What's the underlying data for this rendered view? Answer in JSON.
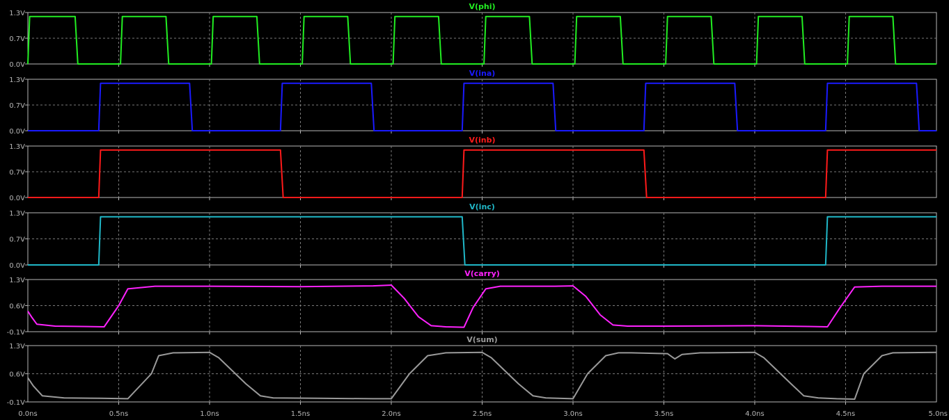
{
  "chart_data": {
    "type": "line",
    "xlabel": "",
    "xlim": [
      0,
      5
    ],
    "x_ticks": [
      "0.0ns",
      "0.5ns",
      "1.0ns",
      "1.5ns",
      "2.0ns",
      "2.5ns",
      "3.0ns",
      "3.5ns",
      "4.0ns",
      "4.5ns",
      "5.0ns"
    ],
    "grid": true,
    "background": "#000000",
    "grid_color": "#7a7a7a",
    "axis_color": "#b8b8b8",
    "panes": [
      {
        "title": "V(phi)",
        "color": "#22ee22",
        "ylim": [
          0,
          1.3
        ],
        "y_ticks": [
          "1.3V",
          "0.7V",
          "0.0V"
        ],
        "x_unit": "ns",
        "x": [
          0.0,
          0.01,
          0.26,
          0.275,
          0.51,
          0.52,
          0.76,
          0.775,
          1.01,
          1.02,
          1.26,
          1.275,
          1.51,
          1.52,
          1.76,
          1.775,
          2.01,
          2.02,
          2.26,
          2.275,
          2.51,
          2.52,
          2.76,
          2.775,
          3.01,
          3.02,
          3.26,
          3.275,
          3.51,
          3.52,
          3.76,
          3.775,
          4.01,
          4.02,
          4.26,
          4.275,
          4.51,
          4.52,
          4.76,
          4.775,
          5.0
        ],
        "y": [
          0.0,
          1.2,
          1.2,
          0.0,
          0.0,
          1.2,
          1.2,
          0.0,
          0.0,
          1.2,
          1.2,
          0.0,
          0.0,
          1.2,
          1.2,
          0.0,
          0.0,
          1.2,
          1.2,
          0.0,
          0.0,
          1.2,
          1.2,
          0.0,
          0.0,
          1.2,
          1.2,
          0.0,
          0.0,
          1.2,
          1.2,
          0.0,
          0.0,
          1.2,
          1.2,
          0.0,
          0.0,
          1.2,
          1.2,
          0.0,
          0.0
        ]
      },
      {
        "title": "V(ina)",
        "color": "#1a1aff",
        "ylim": [
          0,
          1.3
        ],
        "y_ticks": [
          "1.3V",
          "0.7V",
          "0.0V"
        ],
        "x": [
          0.0,
          0.39,
          0.4,
          0.89,
          0.905,
          1.39,
          1.4,
          1.89,
          1.905,
          2.39,
          2.4,
          2.89,
          2.905,
          3.39,
          3.4,
          3.89,
          3.905,
          4.39,
          4.4,
          4.89,
          4.905,
          5.0
        ],
        "y": [
          0.0,
          0.0,
          1.2,
          1.2,
          0.0,
          0.0,
          1.2,
          1.2,
          0.0,
          0.0,
          1.2,
          1.2,
          0.0,
          0.0,
          1.2,
          1.2,
          0.0,
          0.0,
          1.2,
          1.2,
          0.0,
          0.0
        ]
      },
      {
        "title": "V(inb)",
        "color": "#ff1a1a",
        "ylim": [
          0,
          1.3
        ],
        "y_ticks": [
          "1.3V",
          "0.7V",
          "0.0V"
        ],
        "x": [
          0.0,
          0.39,
          0.4,
          1.39,
          1.405,
          2.39,
          2.4,
          3.39,
          3.405,
          4.39,
          4.4,
          5.0
        ],
        "y": [
          0.0,
          0.0,
          1.2,
          1.2,
          0.0,
          0.0,
          1.2,
          1.2,
          0.0,
          0.0,
          1.2,
          1.2
        ]
      },
      {
        "title": "V(inc)",
        "color": "#20b8c8",
        "ylim": [
          0,
          1.3
        ],
        "y_ticks": [
          "1.3V",
          "0.7V",
          "0.0V"
        ],
        "x": [
          0.0,
          0.39,
          0.4,
          2.39,
          2.405,
          4.39,
          4.4,
          5.0
        ],
        "y": [
          0.0,
          0.0,
          1.2,
          1.2,
          0.0,
          0.0,
          1.2,
          1.2
        ]
      },
      {
        "title": "V(carry)",
        "color": "#ff22ff",
        "ylim": [
          -0.1,
          1.3
        ],
        "y_ticks": [
          "1.3V",
          "0.6V",
          "-0.1V"
        ],
        "x": [
          0.0,
          0.02,
          0.05,
          0.15,
          0.3,
          0.42,
          0.5,
          0.55,
          0.7,
          1.0,
          1.5,
          1.9,
          2.0,
          2.07,
          2.15,
          2.22,
          2.3,
          2.4,
          2.45,
          2.52,
          2.6,
          2.7,
          2.9,
          3.0,
          3.07,
          3.15,
          3.22,
          3.3,
          3.5,
          4.0,
          4.3,
          4.4,
          4.47,
          4.55,
          4.7,
          5.0
        ],
        "y": [
          0.45,
          0.3,
          0.1,
          0.05,
          0.04,
          0.03,
          0.6,
          1.05,
          1.12,
          1.12,
          1.11,
          1.13,
          1.15,
          0.8,
          0.3,
          0.06,
          0.03,
          0.02,
          0.55,
          1.05,
          1.12,
          1.12,
          1.12,
          1.13,
          0.85,
          0.35,
          0.08,
          0.05,
          0.05,
          0.06,
          0.04,
          0.03,
          0.55,
          1.1,
          1.12,
          1.12
        ]
      },
      {
        "title": "V(sum)",
        "color": "#9a9a9a",
        "ylim": [
          -0.1,
          1.3
        ],
        "y_ticks": [
          "1.3V",
          "0.6V",
          "-0.1V"
        ],
        "x": [
          0.0,
          0.03,
          0.08,
          0.2,
          0.4,
          0.55,
          0.68,
          0.72,
          0.8,
          1.0,
          1.05,
          1.2,
          1.28,
          1.35,
          1.6,
          1.9,
          2.0,
          2.1,
          2.2,
          2.3,
          2.5,
          2.55,
          2.7,
          2.78,
          2.85,
          3.0,
          3.08,
          3.18,
          3.25,
          3.32,
          3.52,
          3.56,
          3.6,
          3.7,
          4.0,
          4.05,
          4.2,
          4.27,
          4.35,
          4.45,
          4.55,
          4.6,
          4.7,
          4.76,
          5.0
        ],
        "y": [
          0.5,
          0.3,
          0.05,
          0.0,
          -0.01,
          -0.02,
          0.6,
          1.05,
          1.12,
          1.13,
          1.0,
          0.35,
          0.05,
          0.0,
          -0.01,
          -0.02,
          -0.02,
          0.6,
          1.05,
          1.12,
          1.13,
          1.0,
          0.35,
          0.05,
          0.0,
          -0.02,
          0.6,
          1.05,
          1.12,
          1.12,
          1.1,
          0.97,
          1.08,
          1.12,
          1.13,
          1.0,
          0.35,
          0.05,
          0.0,
          -0.02,
          -0.03,
          0.6,
          1.05,
          1.12,
          1.13
        ]
      }
    ]
  }
}
